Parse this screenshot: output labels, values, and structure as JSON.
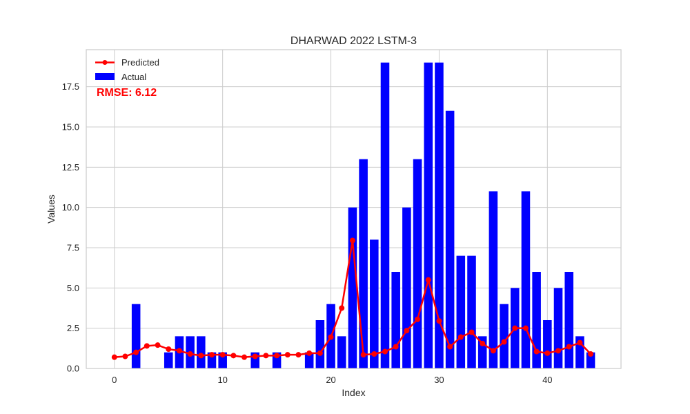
{
  "chart_data": {
    "type": "bar",
    "title": "DHARWAD 2022 LSTM-3",
    "xlabel": "Index",
    "ylabel": "Values",
    "xlim": [
      -2.6,
      46.8
    ],
    "ylim": [
      0,
      19.8
    ],
    "xticks": [
      0,
      10,
      20,
      30,
      40
    ],
    "xtick_labels": [
      "0",
      "10",
      "20",
      "30",
      "40"
    ],
    "yticks": [
      0,
      2.5,
      5,
      7.5,
      10,
      12.5,
      15,
      17.5
    ],
    "ytick_labels": [
      "0.0",
      "2.5",
      "5.0",
      "7.5",
      "10.0",
      "12.5",
      "15.0",
      "17.5"
    ],
    "grid": true,
    "legend_position": "top-left",
    "colors": {
      "actual": "#0000ff",
      "predicted": "#ff0000",
      "grid": "#cccccc",
      "spine": "#cccccc"
    },
    "series": [
      {
        "name": "Predicted",
        "kind": "line",
        "values": [
          0.7,
          0.75,
          1.0,
          1.4,
          1.45,
          1.2,
          1.1,
          0.9,
          0.8,
          0.85,
          0.85,
          0.8,
          0.7,
          0.75,
          0.8,
          0.8,
          0.85,
          0.85,
          0.95,
          0.95,
          1.95,
          3.75,
          7.95,
          0.85,
          0.9,
          1.05,
          1.35,
          2.35,
          3.05,
          5.5,
          2.95,
          1.35,
          1.95,
          2.25,
          1.55,
          1.1,
          1.65,
          2.5,
          2.5,
          1.05,
          0.95,
          1.1,
          1.35,
          1.6,
          0.9
        ]
      },
      {
        "name": "Actual",
        "kind": "bar",
        "values": [
          0,
          0,
          4,
          0,
          0,
          1,
          2,
          2,
          2,
          1,
          1,
          0,
          0,
          1,
          0,
          1,
          0,
          0,
          1,
          3,
          4,
          2,
          10,
          13,
          8,
          19,
          6,
          10,
          13,
          19,
          19,
          16,
          7,
          7,
          2,
          11,
          4,
          5,
          11,
          6,
          3,
          5,
          6,
          2,
          1
        ]
      }
    ],
    "annotations": [
      {
        "text": "RMSE: 6.12",
        "color": "#ff0000"
      }
    ]
  }
}
